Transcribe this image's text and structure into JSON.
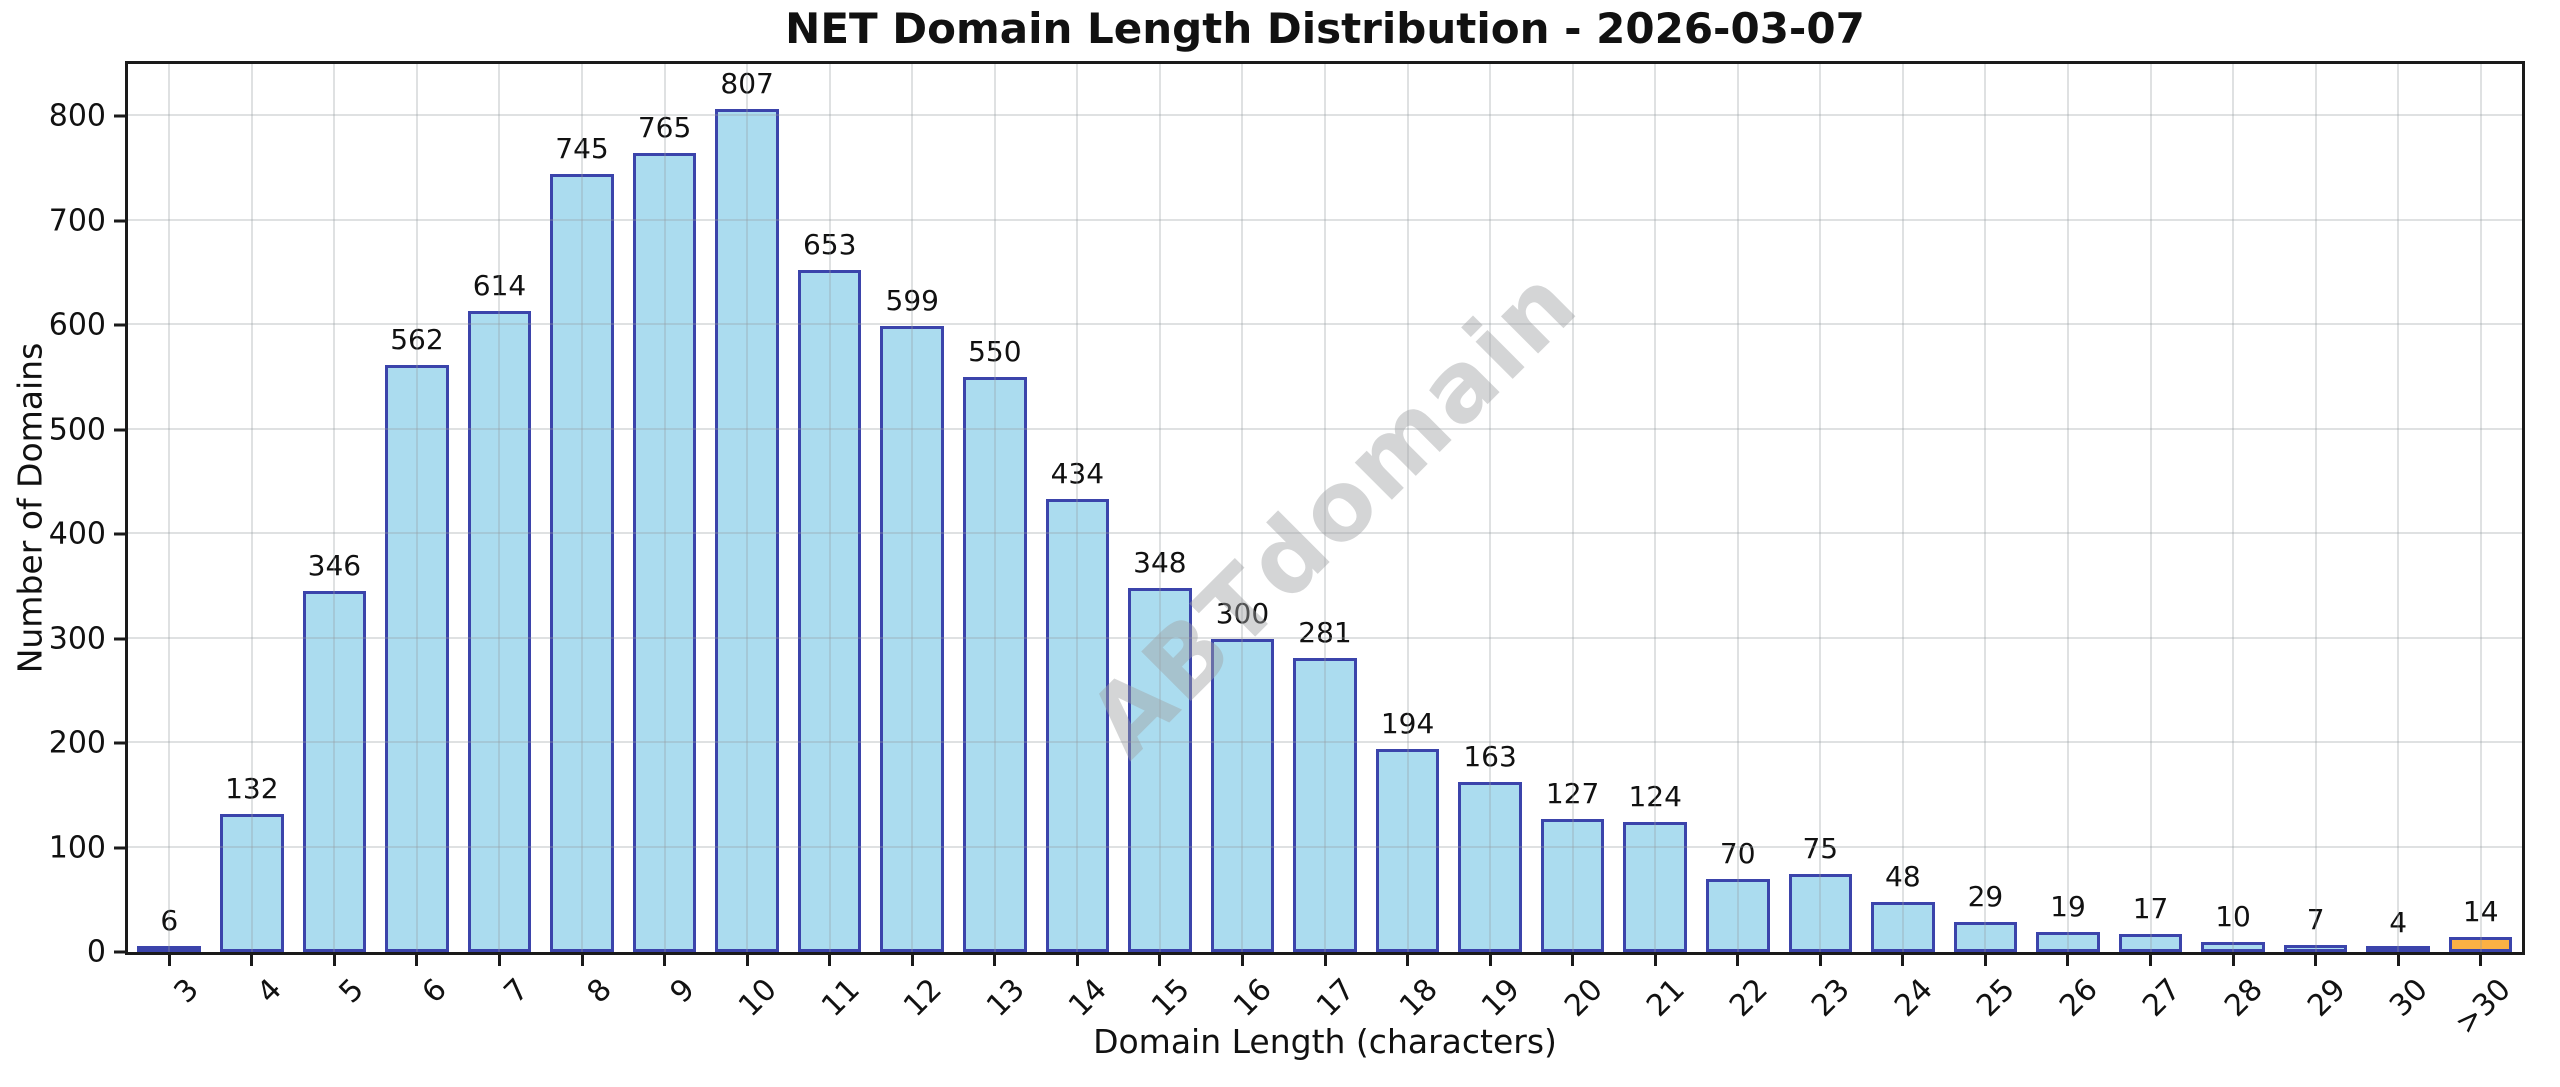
{
  "figure": {
    "title": "NET Domain Length Distribution - 2026-03-07",
    "watermark": "ABTdomain"
  },
  "chart_data": {
    "type": "bar",
    "title": "NET Domain Length Distribution - 2026-03-07",
    "xlabel": "Domain Length (characters)",
    "ylabel": "Number of Domains",
    "categories": [
      "3",
      "4",
      "5",
      "6",
      "7",
      "8",
      "9",
      "10",
      "11",
      "12",
      "13",
      "14",
      "15",
      "16",
      "17",
      "18",
      "19",
      "20",
      "21",
      "22",
      "23",
      "24",
      "25",
      "26",
      "27",
      "28",
      "29",
      "30",
      ">30"
    ],
    "values": [
      6,
      132,
      346,
      562,
      614,
      745,
      765,
      807,
      653,
      599,
      550,
      434,
      348,
      300,
      281,
      194,
      163,
      127,
      124,
      70,
      75,
      48,
      29,
      19,
      17,
      10,
      7,
      4,
      14
    ],
    "value_labels_shown": true,
    "ylim": [
      0,
      850
    ],
    "yticks": [
      0,
      100,
      200,
      300,
      400,
      500,
      600,
      700,
      800
    ],
    "grid": true,
    "xtick_rotation_deg": 45,
    "legend": "none",
    "bar_fill_color": "#abdcef",
    "bar_edge_color": "#3b44ab",
    "highlight_category": ">30",
    "highlight_fill_color": "#fbb144",
    "watermark": "ABTdomain"
  }
}
